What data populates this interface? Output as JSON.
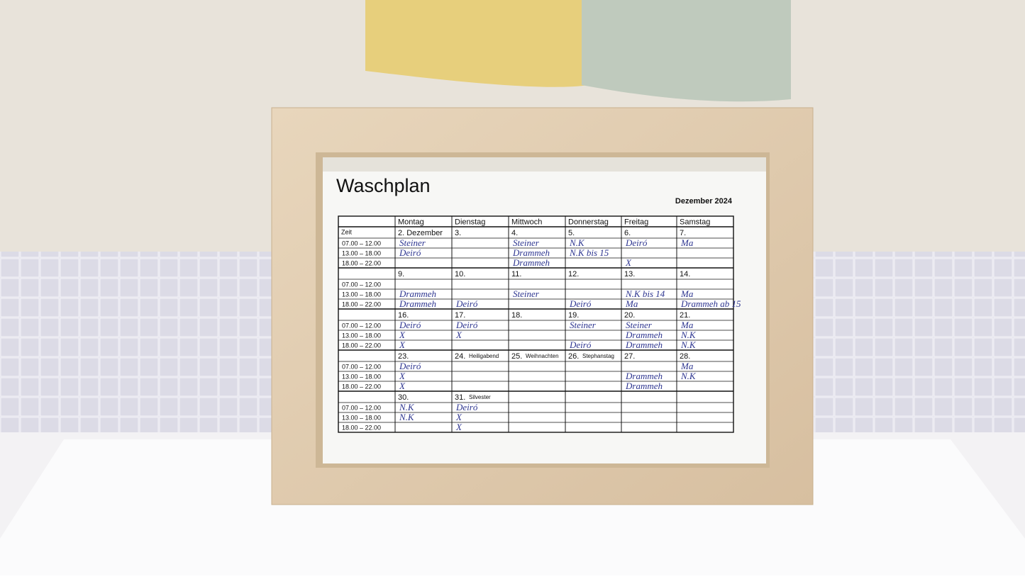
{
  "title": "Waschplan",
  "month": "Dezember 2024",
  "header": {
    "time": "Zeit",
    "days": [
      "Montag",
      "Dienstag",
      "Mittwoch",
      "Donnerstag",
      "Freitag",
      "Samstag"
    ]
  },
  "slots": [
    "07.00 – 12.00",
    "13.00 – 18.00",
    "18.00 – 22.00"
  ],
  "weeks": [
    {
      "dates": [
        "2. Dezember",
        "3.",
        "4.",
        "5.",
        "6.",
        "7."
      ],
      "notes": [
        null,
        null,
        null,
        null,
        null,
        null
      ],
      "entries": [
        [
          "Steiner",
          null,
          "Steiner",
          "N.K",
          "Deiró",
          "Ma"
        ],
        [
          "Deiró",
          null,
          "Drammeh",
          "N.K bis 15",
          null,
          null
        ],
        [
          null,
          null,
          "Drammeh",
          null,
          "X",
          null
        ]
      ]
    },
    {
      "dates": [
        "9.",
        "10.",
        "11.",
        "12.",
        "13.",
        "14."
      ],
      "notes": [
        null,
        null,
        null,
        null,
        null,
        null
      ],
      "entries": [
        [
          null,
          null,
          null,
          null,
          null,
          null
        ],
        [
          "Drammeh",
          null,
          "Steiner",
          null,
          "N.K bis 14",
          "Ma"
        ],
        [
          "Drammeh",
          "Deiró",
          null,
          "Deiró",
          "Ma",
          "Drammeh ab 15"
        ]
      ]
    },
    {
      "dates": [
        "16.",
        "17.",
        "18.",
        "19.",
        "20.",
        "21."
      ],
      "notes": [
        null,
        null,
        null,
        null,
        null,
        null
      ],
      "entries": [
        [
          "Deiró",
          "Deiró",
          null,
          "Steiner",
          "Steiner",
          "Ma"
        ],
        [
          "X",
          "X",
          null,
          null,
          "Drammeh",
          "N.K"
        ],
        [
          "X",
          null,
          null,
          "Deiró",
          "Drammeh",
          "N.K"
        ]
      ]
    },
    {
      "dates": [
        "23.",
        "24.",
        "25.",
        "26.",
        "27.",
        "28."
      ],
      "notes": [
        null,
        "Heiligabend",
        "Weihnachten",
        "Stephanstag",
        null,
        null
      ],
      "entries": [
        [
          "Deiró",
          null,
          null,
          null,
          null,
          "Ma"
        ],
        [
          "X",
          null,
          null,
          null,
          "Drammeh",
          "N.K"
        ],
        [
          "X",
          null,
          null,
          null,
          "Drammeh",
          null
        ]
      ]
    },
    {
      "dates": [
        "30.",
        "31.",
        null,
        null,
        null,
        null
      ],
      "notes": [
        null,
        "Silvester",
        null,
        null,
        null,
        null
      ],
      "entries": [
        [
          "N.K",
          "Deiró",
          null,
          null,
          null,
          null
        ],
        [
          "N.K",
          "X",
          null,
          null,
          null,
          null
        ],
        [
          null,
          "X",
          null,
          null,
          null,
          null
        ]
      ]
    }
  ]
}
